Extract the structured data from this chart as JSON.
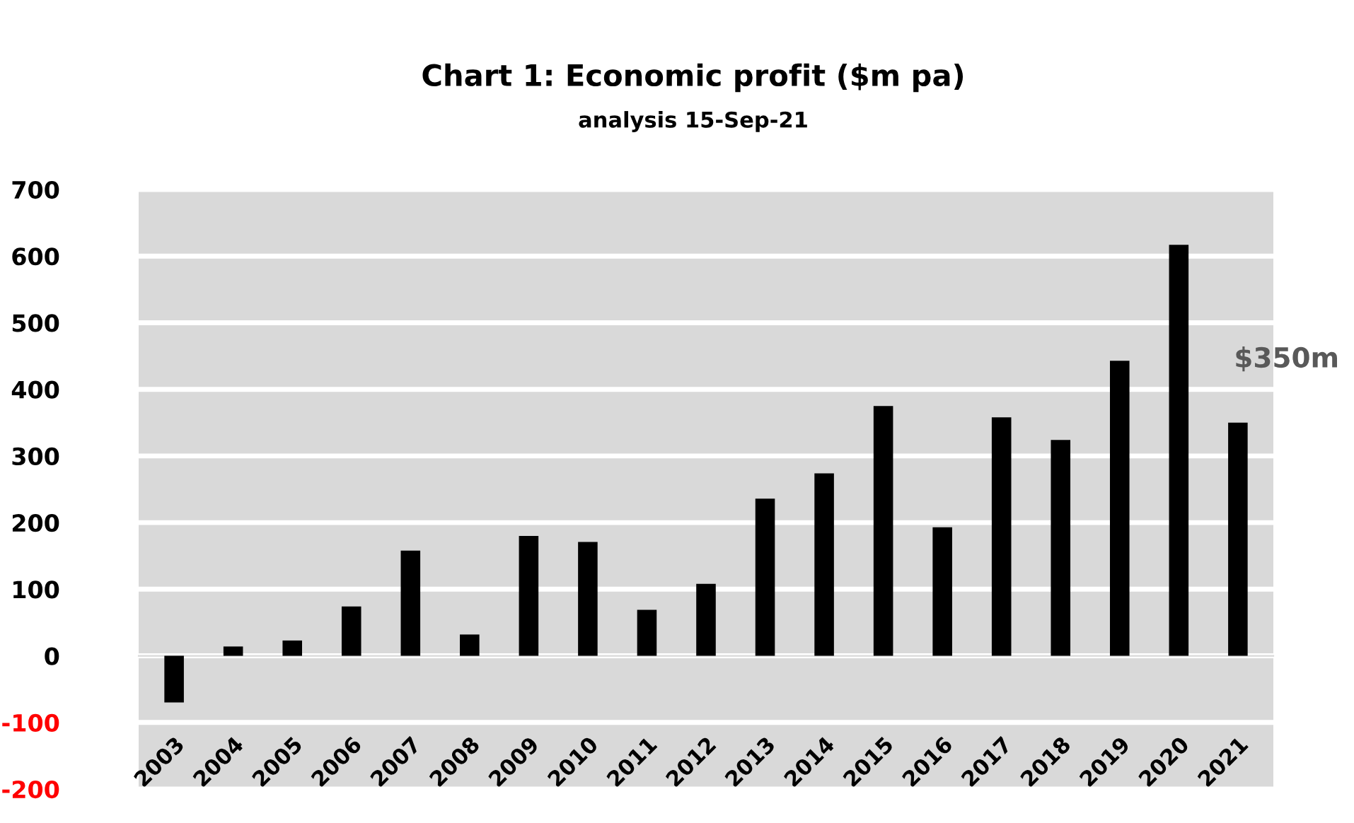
{
  "chart_data": {
    "type": "bar",
    "title": "Chart 1: Economic profit ($m pa)",
    "subtitle": "analysis 15-Sep-21",
    "categories": [
      "2003",
      "2004",
      "2005",
      "2006",
      "2007",
      "2008",
      "2009",
      "2010",
      "2011",
      "2012",
      "2013",
      "2014",
      "2015",
      "2016",
      "2017",
      "2018",
      "2019",
      "2020",
      "2021"
    ],
    "values": [
      -70,
      14,
      23,
      74,
      158,
      32,
      180,
      171,
      69,
      108,
      236,
      274,
      375,
      193,
      358,
      324,
      443,
      617,
      350
    ],
    "color": "#000000",
    "ylim": [
      -200,
      700
    ],
    "yticks": [
      -200,
      -100,
      0,
      100,
      200,
      300,
      400,
      500,
      600,
      700
    ],
    "grid": "y",
    "annotations": [
      {
        "text": "$350m",
        "x": "2021",
        "y": 350
      }
    ]
  }
}
